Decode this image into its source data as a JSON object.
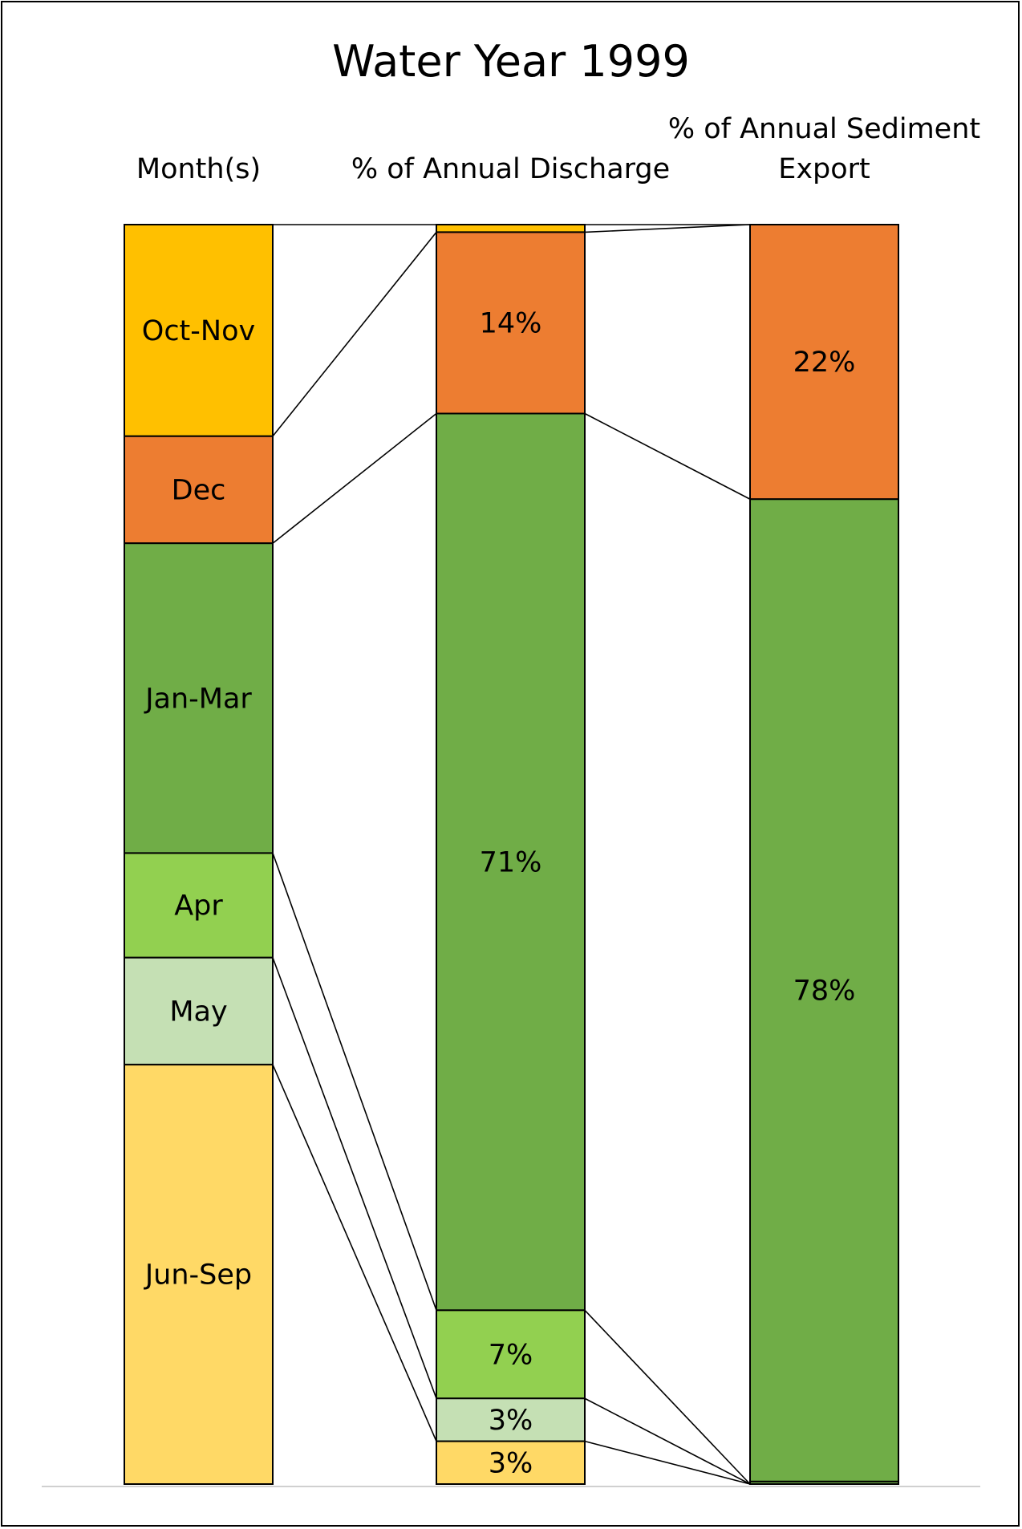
{
  "chart_data": {
    "type": "stacked-bar",
    "title": "Water Year 1999",
    "columns": [
      {
        "header": "Month(s)",
        "segments": [
          {
            "label": "Oct-Nov",
            "value": 16.8,
            "color": "#FFC000"
          },
          {
            "label": "Dec",
            "value": 8.5,
            "color": "#ED7D31"
          },
          {
            "label": "Jan-Mar",
            "value": 24.6,
            "color": "#70AD47"
          },
          {
            "label": "Apr",
            "value": 8.3,
            "color": "#92D050"
          },
          {
            "label": "May",
            "value": 8.5,
            "color": "#C5E0B4"
          },
          {
            "label": "Jun-Sep",
            "value": 33.3,
            "color": "#FFD966"
          }
        ]
      },
      {
        "header": "% of Annual Discharge",
        "segments": [
          {
            "label": "",
            "value": 0.6,
            "color": "#FFC000"
          },
          {
            "label": "14%",
            "value": 14.4,
            "color": "#ED7D31"
          },
          {
            "label": "71%",
            "value": 71.2,
            "color": "#70AD47"
          },
          {
            "label": "7%",
            "value": 7.0,
            "color": "#92D050"
          },
          {
            "label": "3%",
            "value": 3.4,
            "color": "#C5E0B4"
          },
          {
            "label": "3%",
            "value": 3.4,
            "color": "#FFD966"
          }
        ]
      },
      {
        "header": "% of Annual Sediment Export",
        "segments": [
          {
            "label": "22%",
            "value": 21.8,
            "color": "#ED7D31"
          },
          {
            "label": "78%",
            "value": 78.0,
            "color": "#70AD47"
          },
          {
            "label": "",
            "value": 0.2,
            "color": "#70AD47"
          }
        ]
      }
    ],
    "ylim": [
      0,
      100
    ],
    "grid": false,
    "legend": "none"
  }
}
